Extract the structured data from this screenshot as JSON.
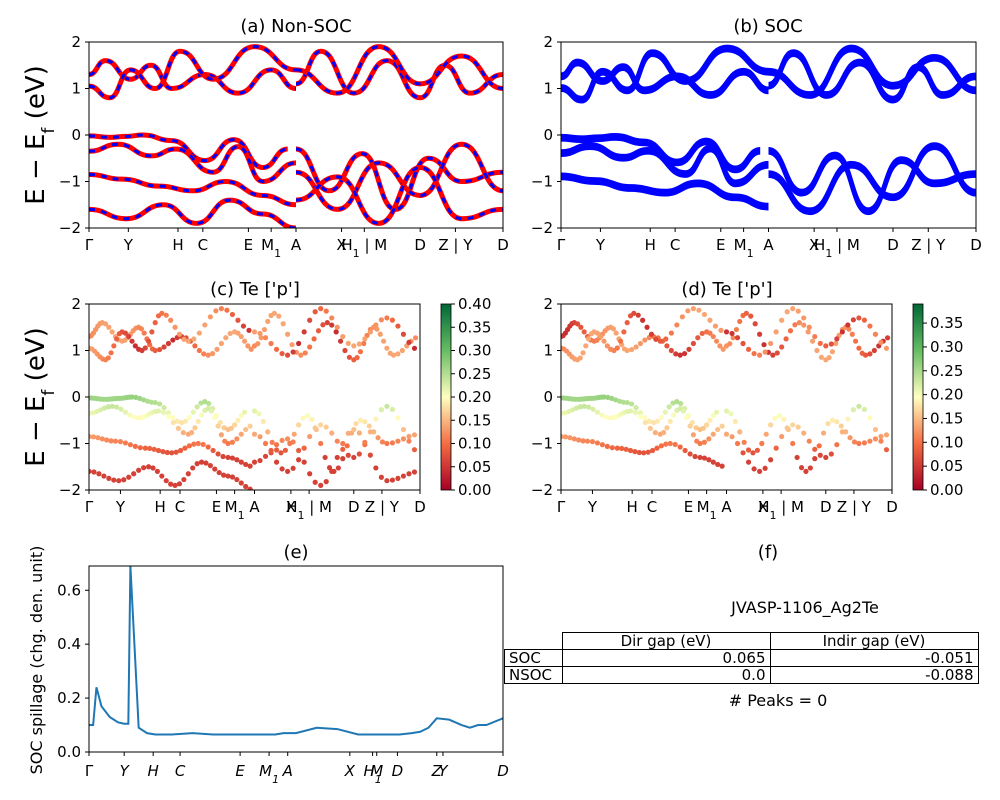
{
  "figure": {
    "panels": {
      "a": {
        "title": "(a) Non-SOC"
      },
      "b": {
        "title": "(b) SOC"
      },
      "c": {
        "title": "(c)  Te ['p']"
      },
      "d": {
        "title": "(d) Te ['p']"
      },
      "e": {
        "title": "(e)"
      },
      "f": {
        "title": "(f)"
      }
    },
    "band_ylabel": "E − E_f (eV)",
    "band_y_ticks": [
      "2",
      "1",
      "0",
      "−1",
      "−2"
    ],
    "kpath_labels": [
      "Γ",
      "Y",
      "H",
      "C",
      "E",
      "M1",
      "A",
      "X",
      "H1 | M",
      "D",
      "Z | Y",
      "D"
    ],
    "colorbar_c_ticks": [
      "0.40",
      "0.35",
      "0.30",
      "0.25",
      "0.20",
      "0.15",
      "0.10",
      "0.05",
      "0.00"
    ],
    "colorbar_d_ticks": [
      "0.35",
      "0.30",
      "0.25",
      "0.20",
      "0.15",
      "0.10",
      "0.05",
      "0.00"
    ],
    "spillage_ylabel": "SOC spillage (chg. den. unit)",
    "spillage_y_ticks": [
      "0.6",
      "0.4",
      "0.2",
      "0.0"
    ],
    "spillage_x_labels": [
      "Γ",
      "Y",
      "H",
      "C",
      "E",
      "M1",
      "A",
      "X",
      "H1",
      "M",
      "D",
      "Z",
      "Y",
      "D"
    ],
    "material": "JVASP-1106_Ag2Te",
    "peaks": "# Peaks = 0",
    "table": {
      "headers": [
        "Dir gap (eV)",
        "Indir gap (eV)"
      ],
      "rows": [
        {
          "label": "SOC",
          "dir": "0.065",
          "indir": "-0.051"
        },
        {
          "label": "NSOC",
          "dir": "0.0",
          "indir": "-0.088"
        }
      ]
    }
  },
  "chart_data": [
    {
      "type": "line",
      "title": "(a) Non-SOC",
      "ylabel": "E − E_f (eV)",
      "ylim": [
        -2,
        2
      ],
      "colors": [
        "#0000ff",
        "#ff0000"
      ],
      "series": [
        {
          "x": [
            0.0,
            0.05,
            0.09,
            0.13,
            0.2,
            0.28,
            0.35,
            0.42,
            0.48
          ],
          "values": [
            -0.02,
            -0.05,
            -0.03,
            0.0,
            -0.12,
            -0.55,
            -0.1,
            -0.7,
            -0.3
          ]
        },
        {
          "x": [
            0.0,
            0.07,
            0.15,
            0.21,
            0.3,
            0.36,
            0.42,
            0.5
          ],
          "values": [
            -0.35,
            -0.2,
            -0.45,
            -0.3,
            -0.8,
            -0.25,
            -1.0,
            -0.6
          ]
        },
        {
          "x": [
            0.0,
            0.08,
            0.17,
            0.25,
            0.33,
            0.42,
            0.5
          ],
          "values": [
            -0.85,
            -0.95,
            -1.1,
            -1.2,
            -1.0,
            -1.3,
            -1.5
          ]
        },
        {
          "x": [
            0.0,
            0.09,
            0.18,
            0.26,
            0.34,
            0.42,
            0.5
          ],
          "values": [
            -1.6,
            -1.8,
            -1.5,
            -1.9,
            -1.4,
            -1.7,
            -2.0
          ]
        },
        {
          "x": [
            0.0,
            0.04,
            0.1,
            0.15,
            0.2,
            0.28,
            0.36,
            0.44,
            0.5
          ],
          "values": [
            1.3,
            1.6,
            1.2,
            1.5,
            1.0,
            1.3,
            0.9,
            1.4,
            1.0
          ]
        },
        {
          "x": [
            0.0,
            0.05,
            0.1,
            0.16,
            0.22,
            0.3,
            0.4,
            0.5
          ],
          "values": [
            1.05,
            0.8,
            1.4,
            1.0,
            1.8,
            1.2,
            1.9,
            1.4
          ]
        },
        {
          "x": [
            0.5,
            0.58,
            0.66,
            0.74,
            0.82,
            0.9,
            1.0
          ],
          "values": [
            -0.3,
            -1.2,
            -0.4,
            -1.6,
            -0.5,
            -1.0,
            -0.8
          ]
        },
        {
          "x": [
            0.5,
            0.6,
            0.7,
            0.8,
            0.9,
            1.0
          ],
          "values": [
            -0.8,
            -1.6,
            -0.6,
            -1.3,
            -0.2,
            -1.2
          ]
        },
        {
          "x": [
            0.5,
            0.6,
            0.7,
            0.8,
            0.9,
            1.0
          ],
          "values": [
            -1.4,
            -0.9,
            -1.9,
            -0.7,
            -1.8,
            -1.6
          ]
        },
        {
          "x": [
            0.5,
            0.56,
            0.64,
            0.72,
            0.8,
            0.86,
            0.92,
            1.0
          ],
          "values": [
            1.1,
            1.8,
            0.9,
            1.6,
            0.8,
            1.5,
            0.9,
            1.3
          ]
        },
        {
          "x": [
            0.5,
            0.6,
            0.7,
            0.8,
            0.9,
            1.0
          ],
          "values": [
            1.4,
            0.9,
            1.9,
            1.1,
            1.7,
            1.0
          ]
        }
      ]
    },
    {
      "type": "line",
      "title": "(b) SOC",
      "ylim": [
        -2,
        2
      ],
      "colors": [
        "#0000ff"
      ],
      "series": [
        {
          "x": [
            0.0,
            0.05,
            0.09,
            0.13,
            0.2,
            0.28,
            0.35,
            0.42,
            0.48
          ],
          "values": [
            -0.02,
            -0.05,
            -0.03,
            0.0,
            -0.12,
            -0.55,
            -0.1,
            -0.7,
            -0.3
          ]
        },
        {
          "x": [
            0.0,
            0.07,
            0.15,
            0.21,
            0.3,
            0.36,
            0.42,
            0.5
          ],
          "values": [
            -0.35,
            -0.2,
            -0.45,
            -0.3,
            -0.8,
            -0.25,
            -1.0,
            -0.6
          ]
        },
        {
          "x": [
            0.0,
            0.08,
            0.17,
            0.25,
            0.33,
            0.42,
            0.5
          ],
          "values": [
            -0.85,
            -0.95,
            -1.1,
            -1.2,
            -1.0,
            -1.3,
            -1.5
          ]
        },
        {
          "x": [
            0.0,
            0.04,
            0.1,
            0.15,
            0.2,
            0.28,
            0.36,
            0.44,
            0.5
          ],
          "values": [
            1.3,
            1.6,
            1.2,
            1.5,
            1.0,
            1.3,
            0.9,
            1.4,
            1.0
          ]
        },
        {
          "x": [
            0.0,
            0.05,
            0.1,
            0.16,
            0.22,
            0.3,
            0.4,
            0.5
          ],
          "values": [
            1.05,
            0.8,
            1.4,
            1.0,
            1.8,
            1.2,
            1.9,
            1.4
          ]
        },
        {
          "x": [
            0.5,
            0.58,
            0.66,
            0.74,
            0.82,
            0.9,
            1.0
          ],
          "values": [
            -0.3,
            -1.2,
            -0.4,
            -1.6,
            -0.5,
            -1.0,
            -0.8
          ]
        },
        {
          "x": [
            0.5,
            0.6,
            0.7,
            0.8,
            0.9,
            1.0
          ],
          "values": [
            -0.8,
            -1.6,
            -0.6,
            -1.3,
            -0.2,
            -1.2
          ]
        },
        {
          "x": [
            0.5,
            0.56,
            0.64,
            0.72,
            0.8,
            0.86,
            0.92,
            1.0
          ],
          "values": [
            1.1,
            1.8,
            0.9,
            1.6,
            0.8,
            1.5,
            0.9,
            1.3
          ]
        },
        {
          "x": [
            0.5,
            0.6,
            0.7,
            0.8,
            0.9,
            1.0
          ],
          "values": [
            1.4,
            0.9,
            1.9,
            1.1,
            1.7,
            1.0
          ]
        }
      ]
    },
    {
      "type": "scatter",
      "title": "(c)  Te ['p']",
      "ylim": [
        -2,
        2
      ],
      "colorbar_range": [
        0,
        0.4
      ],
      "cmap": "RdYlGn",
      "note": "projected Te p-character shown as point color"
    },
    {
      "type": "scatter",
      "title": "(d) Te ['p']",
      "ylim": [
        -2,
        2
      ],
      "colorbar_range": [
        0,
        0.39
      ],
      "cmap": "RdYlGn"
    },
    {
      "type": "line",
      "title": "(e)",
      "ylabel": "SOC spillage (chg. den. unit)",
      "ylim": [
        0,
        0.69
      ],
      "color": "#1f77b4",
      "x": [
        0.0,
        0.01,
        0.018,
        0.03,
        0.05,
        0.07,
        0.085,
        0.095,
        0.1,
        0.12,
        0.14,
        0.16,
        0.2,
        0.25,
        0.3,
        0.35,
        0.4,
        0.45,
        0.47,
        0.5,
        0.55,
        0.6,
        0.65,
        0.7,
        0.75,
        0.78,
        0.8,
        0.82,
        0.84,
        0.87,
        0.9,
        0.92,
        0.94,
        0.96,
        1.0
      ],
      "values": [
        0.1,
        0.1,
        0.24,
        0.17,
        0.13,
        0.11,
        0.105,
        0.105,
        0.69,
        0.09,
        0.07,
        0.065,
        0.065,
        0.07,
        0.065,
        0.065,
        0.065,
        0.065,
        0.07,
        0.07,
        0.09,
        0.085,
        0.065,
        0.065,
        0.065,
        0.07,
        0.075,
        0.09,
        0.125,
        0.12,
        0.1,
        0.09,
        0.1,
        0.1,
        0.125
      ]
    }
  ]
}
